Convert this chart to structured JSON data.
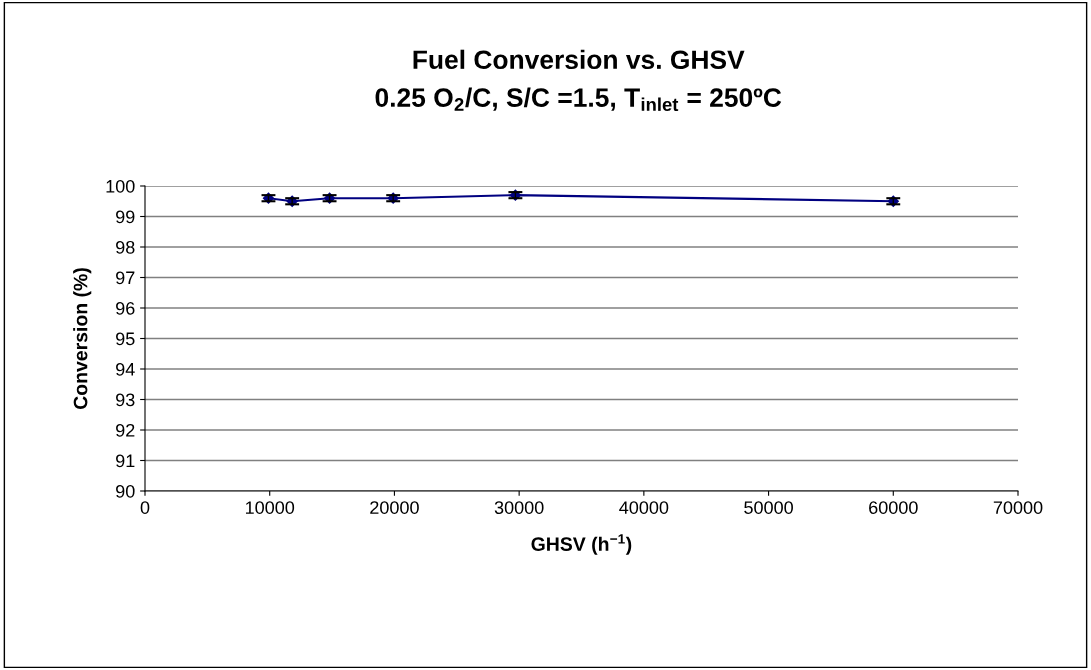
{
  "chart_data": {
    "type": "line",
    "title": "Fuel Conversion vs. GHSV",
    "subtitle": "0.25 O$_{2}$/C, S/C =1.5, T$_{inlet}$ = 250ºC",
    "xlabel": "GHSV (h$^{−1}$)",
    "ylabel": "Conversion (%)",
    "x": [
      9900,
      11800,
      14800,
      19900,
      29700,
      60000
    ],
    "series": [
      {
        "color": "#000080",
        "values": [
          99.6,
          99.5,
          99.6,
          99.6,
          99.7,
          99.5
        ],
        "errors": [
          0.1,
          0.1,
          0.1,
          0.1,
          0.1,
          0.1
        ]
      }
    ],
    "xlim": [
      0,
      70000
    ],
    "xticks": [
      0,
      10000,
      20000,
      30000,
      40000,
      50000,
      60000,
      70000
    ],
    "ylim": [
      90,
      100
    ],
    "yticks": [
      90,
      91,
      92,
      93,
      94,
      95,
      96,
      97,
      98,
      99,
      100
    ],
    "grid": "y",
    "marker": "diamond",
    "line_style": "solid"
  }
}
